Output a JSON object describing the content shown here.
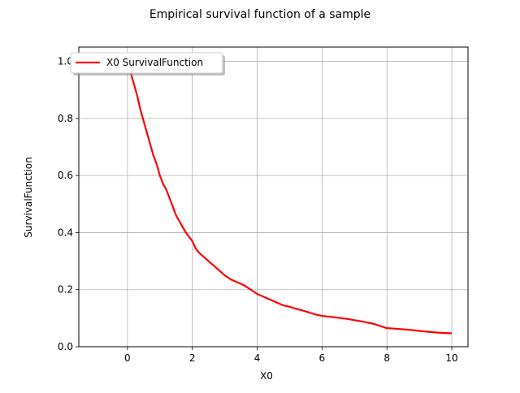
{
  "chart_data": {
    "type": "line",
    "title": "Empirical survival function of a sample",
    "xlabel": "X0",
    "ylabel": "SurvivalFunction",
    "xlim": [
      -1.5,
      10.5
    ],
    "ylim": [
      0.0,
      1.05
    ],
    "xticks": [
      0,
      2,
      4,
      6,
      8,
      10
    ],
    "yticks": [
      0.0,
      0.2,
      0.4,
      0.6,
      0.8,
      1.0
    ],
    "xtick_labels": [
      "0",
      "2",
      "4",
      "6",
      "8",
      "10"
    ],
    "ytick_labels": [
      "0.0",
      "0.2",
      "0.4",
      "0.6",
      "0.8",
      "1.0"
    ],
    "grid": true,
    "legend_position": "top-left",
    "series": [
      {
        "name": "X0 SurvivalFunction",
        "color": "#ff0000",
        "x": [
          0.0,
          0.1,
          0.2,
          0.3,
          0.4,
          0.5,
          0.6,
          0.7,
          0.8,
          0.9,
          1.0,
          1.1,
          1.2,
          1.3,
          1.4,
          1.5,
          1.6,
          1.7,
          1.8,
          1.9,
          2.0,
          2.1,
          2.2,
          2.4,
          2.6,
          2.8,
          3.0,
          3.2,
          3.4,
          3.6,
          3.8,
          4.0,
          4.2,
          4.4,
          4.6,
          4.8,
          5.0,
          5.2,
          5.4,
          5.6,
          5.8,
          6.0,
          6.4,
          6.8,
          7.2,
          7.6,
          8.0,
          8.4,
          8.8,
          9.2,
          9.6,
          10.0
        ],
        "y": [
          1.0,
          0.96,
          0.92,
          0.88,
          0.83,
          0.79,
          0.75,
          0.71,
          0.67,
          0.64,
          0.6,
          0.57,
          0.55,
          0.52,
          0.49,
          0.46,
          0.44,
          0.42,
          0.4,
          0.385,
          0.37,
          0.345,
          0.33,
          0.31,
          0.29,
          0.27,
          0.25,
          0.235,
          0.225,
          0.215,
          0.2,
          0.185,
          0.175,
          0.165,
          0.155,
          0.145,
          0.14,
          0.133,
          0.127,
          0.12,
          0.113,
          0.108,
          0.103,
          0.097,
          0.089,
          0.08,
          0.065,
          0.062,
          0.058,
          0.053,
          0.049,
          0.047
        ]
      }
    ]
  }
}
